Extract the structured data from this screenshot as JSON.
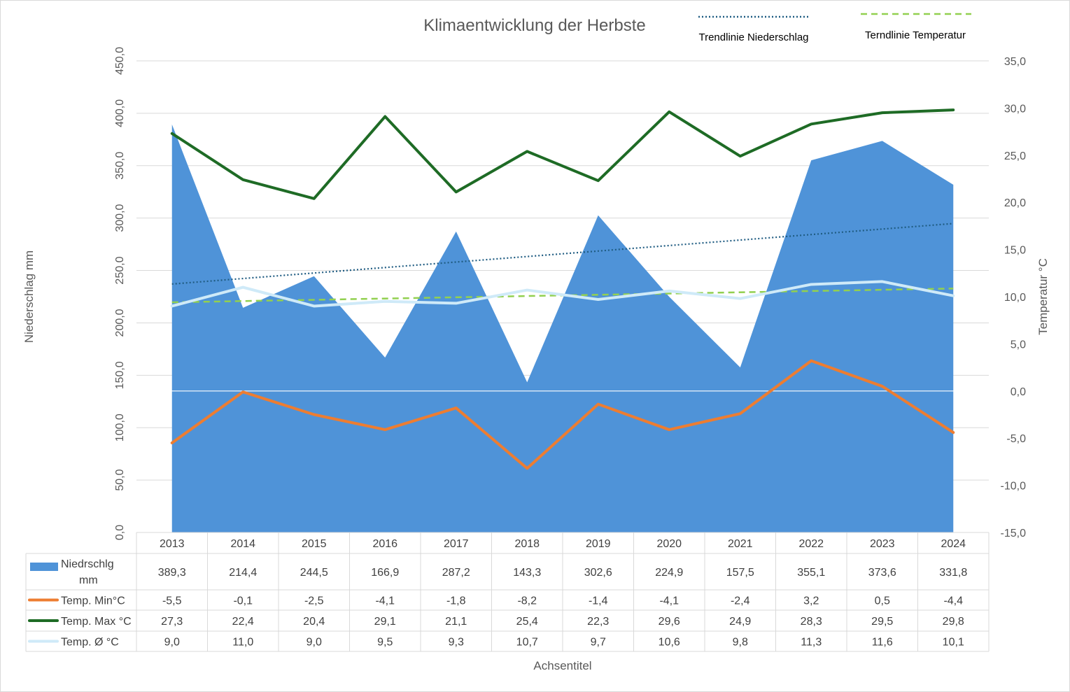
{
  "chart_data": {
    "type": "area",
    "title": "Klimaentwicklung der Herbste",
    "xlabel": "Achsentitel",
    "ylabel": "Niederschlag mm",
    "y2label": "Temperatur °C",
    "categories": [
      "2013",
      "2014",
      "2015",
      "2016",
      "2017",
      "2018",
      "2019",
      "2020",
      "2021",
      "2022",
      "2023",
      "2024"
    ],
    "ylim": [
      0,
      450
    ],
    "y_ticks": [
      "0,0",
      "50,0",
      "100,0",
      "150,0",
      "200,0",
      "250,0",
      "300,0",
      "350,0",
      "400,0",
      "450,0"
    ],
    "y2lim": [
      -15,
      35
    ],
    "y2_ticks": [
      "-15,0",
      "-10,0",
      "-5,0",
      "0,0",
      "5,0",
      "10,0",
      "15,0",
      "20,0",
      "25,0",
      "30,0",
      "35,0"
    ],
    "grid": true,
    "legend_position": "top-right",
    "series": [
      {
        "name": "Niedrschlg mm",
        "axis": "left",
        "kind": "area",
        "color": "#4f93d8",
        "values": [
          389.3,
          214.4,
          244.5,
          166.9,
          287.2,
          143.3,
          302.6,
          224.9,
          157.5,
          355.1,
          373.6,
          331.8
        ],
        "labels": [
          "389,3",
          "214,4",
          "244,5",
          "166,9",
          "287,2",
          "143,3",
          "302,6",
          "224,9",
          "157,5",
          "355,1",
          "373,6",
          "331,8"
        ]
      },
      {
        "name": "Temp. Min°C",
        "axis": "right",
        "kind": "line",
        "color": "#ed7d31",
        "values": [
          -5.5,
          -0.1,
          -2.5,
          -4.1,
          -1.8,
          -8.2,
          -1.4,
          -4.1,
          -2.4,
          3.2,
          0.5,
          -4.4
        ],
        "labels": [
          "-5,5",
          "-0,1",
          "-2,5",
          "-4,1",
          "-1,8",
          "-8,2",
          "-1,4",
          "-4,1",
          "-2,4",
          "3,2",
          "0,5",
          "-4,4"
        ]
      },
      {
        "name": "Temp. Max °C",
        "axis": "right",
        "kind": "line",
        "color": "#1e6b25",
        "values": [
          27.3,
          22.4,
          20.4,
          29.1,
          21.1,
          25.4,
          22.3,
          29.6,
          24.9,
          28.3,
          29.5,
          29.8
        ],
        "labels": [
          "27,3",
          "22,4",
          "20,4",
          "29,1",
          "21,1",
          "25,4",
          "22,3",
          "29,6",
          "24,9",
          "28,3",
          "29,5",
          "29,8"
        ]
      },
      {
        "name": "Temp. Ø °C",
        "axis": "right",
        "kind": "line",
        "color": "#cfeaf8",
        "values": [
          9.0,
          11.0,
          9.0,
          9.5,
          9.3,
          10.7,
          9.7,
          10.6,
          9.8,
          11.3,
          11.6,
          10.1
        ],
        "labels": [
          "9,0",
          "11,0",
          "9,0",
          "9,5",
          "9,3",
          "10,7",
          "9,7",
          "10,6",
          "9,8",
          "11,3",
          "11,6",
          "10,1"
        ]
      }
    ],
    "trendlines": [
      {
        "name": "Trendlinie Niederschlag",
        "of": "Niedrschlg mm",
        "axis": "left",
        "style": "dotted",
        "color": "#1f5c82"
      },
      {
        "name": "Terndlinie Temperatur",
        "of": "Temp. Ø °C",
        "axis": "right",
        "style": "dashed",
        "color": "#92d050"
      }
    ]
  }
}
